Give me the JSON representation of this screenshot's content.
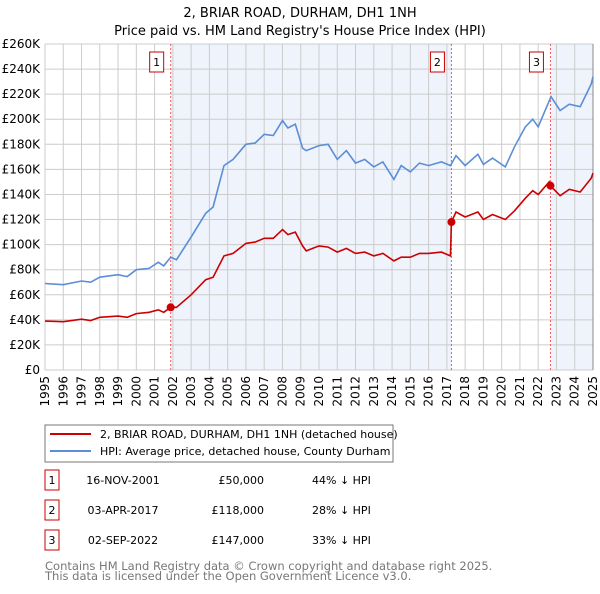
{
  "chart_data": {
    "type": "line",
    "title": "2, BRIAR ROAD, DURHAM, DH1 1NH",
    "subtitle": "Price paid vs. HM Land Registry's House Price Index (HPI)",
    "xlim": [
      1995,
      2025
    ],
    "ylim": [
      0,
      260000
    ],
    "yticks": [
      0,
      20000,
      40000,
      60000,
      80000,
      100000,
      120000,
      140000,
      160000,
      180000,
      200000,
      220000,
      240000,
      260000
    ],
    "ytick_labels": [
      "£0",
      "£20K",
      "£40K",
      "£60K",
      "£80K",
      "£100K",
      "£120K",
      "£140K",
      "£160K",
      "£180K",
      "£200K",
      "£220K",
      "£240K",
      "£260K"
    ],
    "xtick_labels": [
      "1995",
      "1996",
      "1997",
      "1998",
      "1999",
      "2000",
      "2001",
      "2002",
      "2003",
      "2004",
      "2005",
      "2006",
      "2007",
      "2008",
      "2009",
      "2010",
      "2011",
      "2012",
      "2013",
      "2014",
      "2015",
      "2016",
      "2017",
      "2018",
      "2019",
      "2020",
      "2021",
      "2022",
      "2023",
      "2024",
      "2025"
    ],
    "grid": true,
    "series": [
      {
        "name": "2, BRIAR ROAD, DURHAM, DH1 1NH (detached house)",
        "color": "#cc0000",
        "x": [
          1995,
          1996,
          1997,
          1997.5,
          1998,
          1999,
          1999.5,
          2000,
          2000.7,
          2001.2,
          2001.5,
          2001.88,
          2002.2,
          2003,
          2003.8,
          2004.2,
          2004.8,
          2005.3,
          2006,
          2006.5,
          2007,
          2007.5,
          2008,
          2008.3,
          2008.7,
          2009.1,
          2009.3,
          2010,
          2010.5,
          2011,
          2011.5,
          2012,
          2012.5,
          2013,
          2013.5,
          2014.1,
          2014.5,
          2015,
          2015.5,
          2016,
          2016.7,
          2017.2,
          2017.25,
          2017.5,
          2018,
          2018.7,
          2019,
          2019.5,
          2020.2,
          2020.7,
          2021.3,
          2021.7,
          2022,
          2022.6,
          2022.67,
          2023.2,
          2023.7,
          2024.3,
          2024.9,
          2025
        ],
        "y": [
          39000,
          38500,
          40500,
          39500,
          42000,
          43000,
          42000,
          45000,
          46000,
          48000,
          46000,
          50000,
          50000,
          60000,
          72000,
          74000,
          91000,
          93000,
          101000,
          102000,
          105000,
          105000,
          112000,
          108000,
          110000,
          99000,
          95000,
          99000,
          98000,
          94000,
          97000,
          93000,
          94000,
          91000,
          93000,
          87000,
          90000,
          90000,
          93000,
          93000,
          94000,
          91000,
          118000,
          126000,
          122000,
          126000,
          120000,
          124000,
          120000,
          127000,
          137000,
          143000,
          140000,
          150000,
          147000,
          139000,
          144000,
          142000,
          153000,
          157000
        ]
      },
      {
        "name": "HPI: Average price, detached house, County Durham",
        "color": "#5b8ed6",
        "x": [
          1995,
          1996,
          1997,
          1997.5,
          1998,
          1999,
          1999.5,
          2000,
          2000.7,
          2001.2,
          2001.5,
          2001.88,
          2002.2,
          2003,
          2003.8,
          2004.2,
          2004.8,
          2005.3,
          2006,
          2006.5,
          2007,
          2007.5,
          2008,
          2008.3,
          2008.7,
          2009.1,
          2009.3,
          2010,
          2010.5,
          2011,
          2011.5,
          2012,
          2012.5,
          2013,
          2013.5,
          2014.1,
          2014.5,
          2015,
          2015.5,
          2016,
          2016.7,
          2017.2,
          2017.5,
          2018,
          2018.7,
          2019,
          2019.5,
          2020.2,
          2020.7,
          2021.3,
          2021.7,
          2022,
          2022.7,
          2023.2,
          2023.7,
          2024.3,
          2024.9,
          2025
        ],
        "y": [
          69000,
          68000,
          71000,
          70000,
          74000,
          76000,
          74500,
          80000,
          81000,
          86000,
          83000,
          90000,
          88000,
          106000,
          125000,
          130000,
          163000,
          168000,
          180000,
          181000,
          188000,
          187000,
          199000,
          193000,
          196000,
          177000,
          175000,
          179000,
          180000,
          168000,
          175000,
          165000,
          168000,
          162000,
          166000,
          152000,
          163000,
          158000,
          165000,
          163000,
          166000,
          163000,
          171000,
          163000,
          172000,
          164000,
          169000,
          162000,
          178000,
          194000,
          200000,
          194000,
          218000,
          207000,
          212000,
          210000,
          228000,
          234000
        ]
      }
    ],
    "sales": [
      {
        "label": "1",
        "x": 2001.88,
        "y": 50000
      },
      {
        "label": "2",
        "x": 2017.25,
        "y": 118000
      },
      {
        "label": "3",
        "x": 2022.67,
        "y": 147000
      }
    ],
    "legend_position": "below"
  },
  "table": [
    {
      "num": "1",
      "date": "16-NOV-2001",
      "price": "£50,000",
      "hpi": "44% ↓ HPI"
    },
    {
      "num": "2",
      "date": "03-APR-2017",
      "price": "£118,000",
      "hpi": "28% ↓ HPI"
    },
    {
      "num": "3",
      "date": "02-SEP-2022",
      "price": "£147,000",
      "hpi": "33% ↓ HPI"
    }
  ],
  "footer": [
    "Contains HM Land Registry data © Crown copyright and database right 2025.",
    "This data is licensed under the Open Government Licence v3.0."
  ],
  "colors": {
    "shade": "#eef3fc",
    "grid": "#cccccc",
    "marker": "#ff5555"
  }
}
